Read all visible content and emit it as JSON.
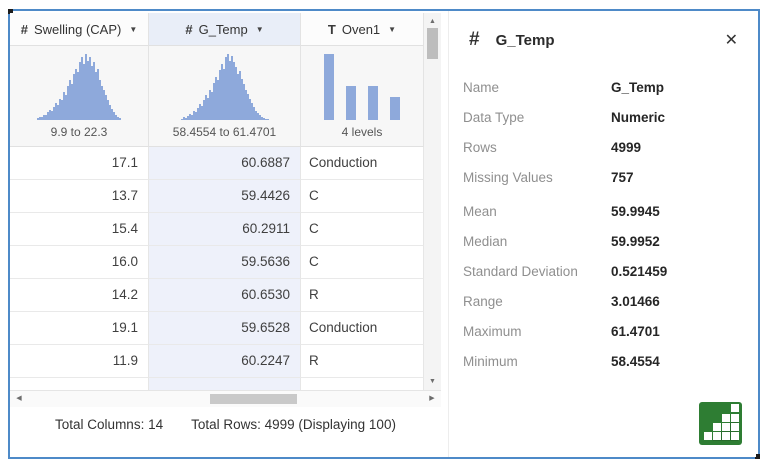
{
  "colors": {
    "window_border": "#4e8ac8",
    "histogram_bar": "#8ea9db",
    "selected_header_bg": "#e9eef8",
    "selected_cell_bg": "#eef1fa",
    "stats_icon_green": "#2e7d33"
  },
  "icons": {
    "caret_down": "▼",
    "scroll_up": "▲",
    "scroll_down": "▼",
    "scroll_left": "◀",
    "scroll_right": "▶",
    "close": "✕"
  },
  "table": {
    "columns": [
      {
        "type": "numeric",
        "type_icon": "#",
        "label": "Swelling (CAP)",
        "range_label": "9.9 to 22.3",
        "selected": false,
        "align": "num",
        "histogram": {
          "type": "bar",
          "style": "distribution",
          "values": [
            3,
            5,
            4,
            8,
            7,
            12,
            15,
            13,
            20,
            26,
            22,
            32,
            30,
            42,
            38,
            52,
            60,
            55,
            70,
            78,
            72,
            88,
            95,
            85,
            100,
            90,
            96,
            82,
            88,
            72,
            78,
            60,
            52,
            45,
            38,
            30,
            22,
            16,
            12,
            8,
            5,
            3
          ]
        }
      },
      {
        "type": "numeric",
        "type_icon": "#",
        "label": "G_Temp",
        "range_label": "58.4554 to 61.4701",
        "selected": true,
        "align": "num",
        "histogram": {
          "type": "bar",
          "style": "distribution",
          "values": [
            2,
            4,
            3,
            6,
            9,
            8,
            14,
            12,
            18,
            24,
            21,
            30,
            38,
            34,
            46,
            42,
            56,
            65,
            60,
            76,
            85,
            78,
            96,
            100,
            90,
            97,
            88,
            80,
            70,
            74,
            62,
            55,
            46,
            40,
            32,
            26,
            20,
            14,
            10,
            7,
            4,
            3,
            2,
            1
          ]
        }
      },
      {
        "type": "text",
        "type_icon": "T",
        "label": "Oven1",
        "range_label": "4 levels",
        "selected": false,
        "align": "txt",
        "histogram": {
          "type": "bar",
          "style": "levels",
          "values": [
            100,
            52,
            51,
            35
          ]
        }
      }
    ],
    "rows": [
      [
        "17.1",
        "60.6887",
        "Conduction"
      ],
      [
        "13.7",
        "59.4426",
        "C"
      ],
      [
        "15.4",
        "60.2911",
        "C"
      ],
      [
        "16.0",
        "59.5636",
        "C"
      ],
      [
        "14.2",
        "60.6530",
        "R"
      ],
      [
        "19.1",
        "59.6528",
        "Conduction"
      ],
      [
        "11.9",
        "60.2247",
        "R"
      ]
    ],
    "footer": {
      "total_columns": "Total Columns: 14",
      "total_rows": "Total Rows: 4999 (Displaying 100)"
    }
  },
  "panel": {
    "type_icon": "#",
    "title": "G_Temp",
    "groups": [
      [
        {
          "label": "Name",
          "value": "G_Temp"
        },
        {
          "label": "Data Type",
          "value": "Numeric"
        },
        {
          "label": "Rows",
          "value": "4999"
        },
        {
          "label": "Missing Values",
          "value": "757"
        }
      ],
      [
        {
          "label": "Mean",
          "value": "59.9945"
        },
        {
          "label": "Median",
          "value": "59.9952"
        },
        {
          "label": "Standard Deviation",
          "value": "0.521459"
        },
        {
          "label": "Range",
          "value": "3.01466"
        },
        {
          "label": "Maximum",
          "value": "61.4701"
        },
        {
          "label": "Minimum",
          "value": "58.4554"
        }
      ]
    ]
  }
}
